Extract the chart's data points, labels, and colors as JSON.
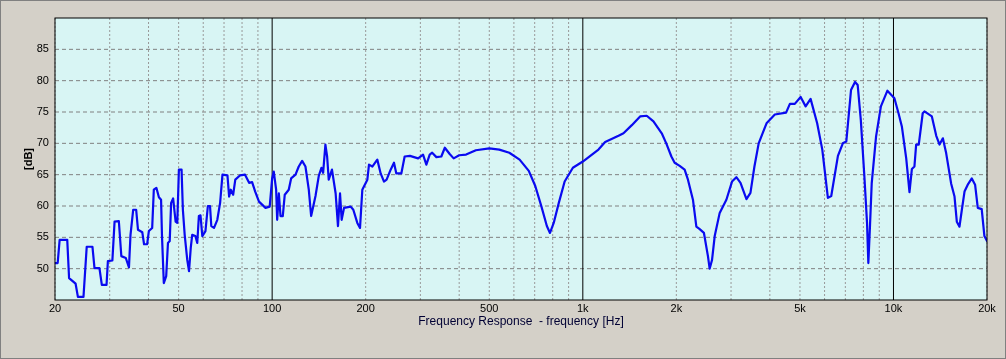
{
  "chart_data": {
    "type": "line",
    "xlabel": "Frequency Response  - frequency [Hz]",
    "ylabel": "[dB]",
    "log": "x",
    "grid": true,
    "marker": "none",
    "line_style": "solid",
    "xlim": [
      20,
      20000
    ],
    "ylim": [
      45,
      90
    ],
    "xticks": [
      20,
      {
        "value": 30,
        "label": null
      },
      {
        "value": 40,
        "label": null
      },
      50,
      {
        "value": 60,
        "label": null
      },
      {
        "value": 70,
        "label": null
      },
      {
        "value": 80,
        "label": null
      },
      {
        "value": 90,
        "label": null
      },
      100,
      200,
      {
        "value": 300,
        "label": null
      },
      {
        "value": 400,
        "label": null
      },
      500,
      {
        "value": 600,
        "label": null
      },
      {
        "value": 700,
        "label": null
      },
      {
        "value": 800,
        "label": null
      },
      {
        "value": 900,
        "label": null
      },
      {
        "value": 1000,
        "label": "1k"
      },
      {
        "value": 2000,
        "label": "2k"
      },
      {
        "value": 3000,
        "label": null
      },
      {
        "value": 4000,
        "label": null
      },
      {
        "value": 5000,
        "label": "5k"
      },
      {
        "value": 6000,
        "label": null
      },
      {
        "value": 7000,
        "label": null
      },
      {
        "value": 8000,
        "label": null
      },
      {
        "value": 9000,
        "label": null
      },
      {
        "value": 10000,
        "label": "10k"
      },
      {
        "value": 20000,
        "label": "20k"
      }
    ],
    "yticks": [
      50,
      55,
      60,
      65,
      70,
      75,
      80,
      85
    ],
    "x": [
      20,
      20.4,
      20.7,
      21.9,
      22.2,
      23.3,
      23.7,
      24.7,
      25.3,
      26.4,
      26.8,
      27.8,
      28.3,
      29.3,
      29.6,
      30.6,
      31.1,
      32.1,
      32.7,
      33.8,
      34.6,
      35,
      35.7,
      36.5,
      37,
      38.2,
      38.7,
      39.6,
      40.1,
      41.1,
      41.6,
      42.4,
      43.2,
      43.9,
      44.2,
      44.8,
      45.6,
      46.2,
      46.8,
      47.3,
      48,
      48.9,
      49.5,
      50.1,
      51.1,
      51.6,
      52.3,
      53.3,
      54,
      54.7,
      55.3,
      56.6,
      57.4,
      58.1,
      58.8,
      59.6,
      61,
      62.1,
      63.1,
      63.7,
      65,
      66.6,
      68,
      69.2,
      71.8,
      72.7,
      73.6,
      74.9,
      76.1,
      78.9,
      81.8,
      84.3,
      86.2,
      88.2,
      90.7,
      95.2,
      98.2,
      100,
      101.2,
      103,
      103.8,
      105.1,
      106.4,
      108.2,
      109.8,
      113.1,
      115.1,
      118.9,
      121.8,
      124.9,
      128,
      131.2,
      133.5,
      137.9,
      141.3,
      144.1,
      145.9,
      148.4,
      150.3,
      152.1,
      155.8,
      160.1,
      162.9,
      165.4,
      167.4,
      170.4,
      179,
      182.5,
      188,
      191.8,
      195.1,
      202.5,
      205,
      210.1,
      218,
      223.5,
      229.1,
      233.6,
      240.7,
      246.7,
      251,
      260.5,
      267,
      277.7,
      295,
      306,
      313.6,
      321.5,
      327.4,
      337.8,
      350.4,
      359.6,
      372.8,
      384,
      400,
      421,
      452.6,
      500,
      538.5,
      580,
      626,
      670,
      703,
      736,
      766,
      784,
      806,
      837,
      874,
      929,
      1000,
      1123,
      1180,
      1303,
      1352,
      1438,
      1529,
      1606,
      1688,
      1795,
      1856,
      1928,
      1975,
      2050,
      2127,
      2180,
      2262,
      2320,
      2378,
      2454,
      2528,
      2560,
      2606,
      2658,
      2758,
      2898,
      3022,
      3120,
      3218,
      3363,
      3464,
      3568,
      3682,
      3903,
      4150,
      4512,
      4640,
      4812,
      5025,
      5215,
      5410,
      5680,
      5900,
      6150,
      6305,
      6625,
      6870,
      7050,
      7300,
      7520,
      7670,
      7850,
      8060,
      8220,
      8300,
      8400,
      8510,
      8790,
      9110,
      9560,
      10070,
      10380,
      10640,
      10990,
      11260,
      11460,
      11680,
      11830,
      12060,
      12420,
      12580,
      13290,
      13730,
      14070,
      14420,
      14780,
      15330,
      15720,
      15990,
      16310,
      16600,
      16930,
      17340,
      17870,
      18310,
      18680,
      19230,
      19620,
      20000
    ],
    "series": [
      {
        "color": "#0a0af0",
        "values": [
          50.9,
          50.9,
          54.6,
          54.6,
          48.5,
          47.6,
          45.5,
          45.5,
          53.5,
          53.5,
          50.1,
          50.1,
          47.4,
          47.4,
          51.2,
          51.3,
          57.5,
          57.6,
          52,
          51.7,
          50.2,
          55.4,
          59.4,
          59.4,
          56.2,
          55.8,
          53.9,
          53.9,
          56,
          56.5,
          62.6,
          62.9,
          61.4,
          61,
          55.2,
          47.7,
          48.8,
          54.1,
          54.4,
          60.5,
          61.2,
          57.5,
          57.3,
          65.8,
          65.8,
          59.4,
          55.4,
          51.4,
          49.6,
          53.3,
          55.4,
          55.2,
          54.1,
          58.4,
          58.5,
          55.2,
          56,
          60,
          60,
          56.8,
          56.5,
          57.8,
          60.5,
          65,
          64.9,
          61.5,
          62.6,
          61.8,
          64.2,
          64.9,
          65,
          63.7,
          63.8,
          62.3,
          60.7,
          59.7,
          59.9,
          64.4,
          65.5,
          62.6,
          57.8,
          62,
          58.4,
          58.4,
          61.8,
          62.6,
          64.4,
          65,
          66.3,
          67.2,
          66.3,
          62.6,
          58.4,
          61.6,
          64.8,
          66.1,
          65.3,
          69.8,
          67.9,
          64.2,
          65.8,
          62,
          56.8,
          62,
          57.8,
          59.7,
          59.9,
          59.4,
          57.3,
          56.5,
          62.6,
          64.2,
          66.6,
          66.3,
          67.4,
          65.2,
          63.9,
          64.2,
          65.8,
          66.9,
          65.2,
          65.2,
          67.9,
          68,
          67.6,
          68.2,
          66.6,
          68.2,
          68.5,
          67.8,
          67.9,
          69.3,
          68.3,
          67.6,
          68.1,
          68.2,
          68.9,
          69.2,
          69,
          68.5,
          67.4,
          65.6,
          63.2,
          59.9,
          56.8,
          55.7,
          57.3,
          60.5,
          63.9,
          66.1,
          67.1,
          69,
          70.2,
          71.2,
          71.6,
          72.9,
          74.3,
          74.4,
          73.5,
          71.6,
          70,
          67.9,
          66.9,
          66.4,
          65.8,
          64.2,
          61,
          56.7,
          56.3,
          55.7,
          52,
          50,
          51.4,
          55.2,
          58.9,
          61,
          63.9,
          64.6,
          63.7,
          61.1,
          62.1,
          66.3,
          70,
          73.2,
          74.6,
          74.9,
          76.3,
          76.3,
          77.4,
          75.9,
          77.1,
          73.2,
          69,
          61.3,
          61.6,
          68,
          70,
          70.3,
          78.5,
          79.8,
          79.3,
          73.7,
          64.7,
          57.3,
          50.9,
          56.7,
          63.6,
          71.1,
          75.9,
          78.4,
          77.2,
          74.8,
          72.7,
          67.6,
          62.2,
          65.9,
          66.3,
          69.8,
          69.8,
          74.8,
          75.1,
          74.3,
          71.2,
          69.8,
          70.8,
          68.4,
          63.6,
          61.5,
          57.5,
          56.7,
          59.4,
          62.3,
          63.4,
          64.4,
          63.4,
          59.7,
          59.5,
          55.2,
          54.4
        ]
      }
    ]
  }
}
